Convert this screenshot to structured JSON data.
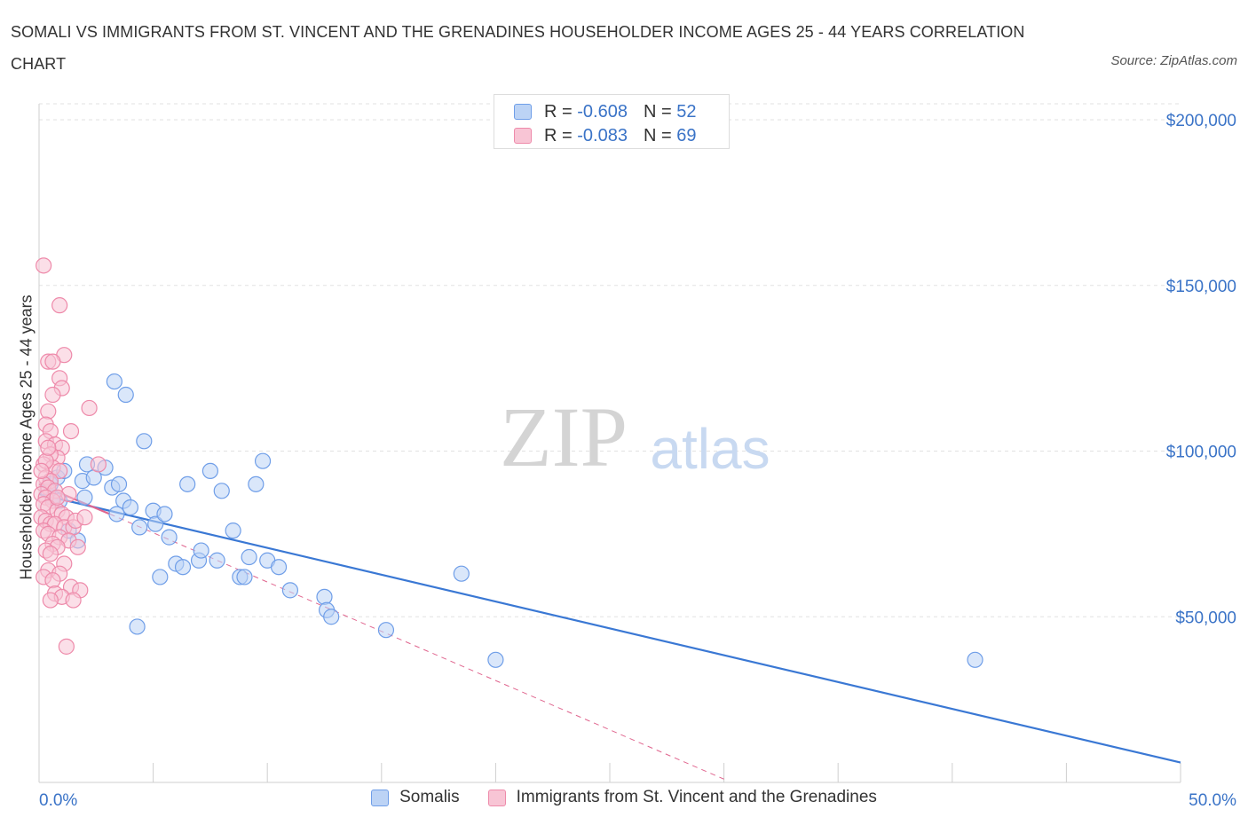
{
  "title": "SOMALI VS IMMIGRANTS FROM ST. VINCENT AND THE GRENADINES HOUSEHOLDER INCOME AGES 25 - 44 YEARS CORRELATION CHART",
  "source": "Source: ZipAtlas.com",
  "watermark": {
    "zip": "ZIP",
    "atlas": "atlas"
  },
  "legend_top": [
    {
      "r_label": "R =",
      "r_value": "-0.608",
      "n_label": "N =",
      "n_value": "52",
      "color": "#6f9ee8",
      "fill": "#bcd3f5"
    },
    {
      "r_label": "R =",
      "r_value": "-0.083",
      "n_label": "N =",
      "n_value": "69",
      "color": "#ee8aaa",
      "fill": "#f8c5d5"
    }
  ],
  "chart_data": {
    "type": "scatter",
    "xlabel": "",
    "ylabel": "Householder Income Ages 25 - 44 years",
    "xlim": [
      0,
      50
    ],
    "ylim": [
      0,
      200000
    ],
    "x_tick_labels": [
      "0.0%",
      "50.0%"
    ],
    "y_tick_labels": [
      "$50,000",
      "$100,000",
      "$150,000",
      "$200,000"
    ],
    "y_ticks": [
      50000,
      100000,
      150000,
      200000
    ],
    "grid": true,
    "legend_position": "top-center and bottom",
    "series": [
      {
        "name": "Somalis",
        "color": "#6f9ee8",
        "fill": "#bcd3f5",
        "points": [
          [
            0.5,
            90000
          ],
          [
            0.6,
            86000
          ],
          [
            0.4,
            88000
          ],
          [
            0.8,
            92000
          ],
          [
            1.1,
            94000
          ],
          [
            0.9,
            85000
          ],
          [
            1.3,
            76000
          ],
          [
            1.7,
            73000
          ],
          [
            1.9,
            91000
          ],
          [
            2.0,
            86000
          ],
          [
            2.1,
            96000
          ],
          [
            2.4,
            92000
          ],
          [
            2.9,
            95000
          ],
          [
            3.2,
            89000
          ],
          [
            3.5,
            90000
          ],
          [
            3.4,
            81000
          ],
          [
            3.7,
            85000
          ],
          [
            4.0,
            83000
          ],
          [
            4.4,
            77000
          ],
          [
            4.6,
            103000
          ],
          [
            5.0,
            82000
          ],
          [
            5.1,
            78000
          ],
          [
            5.5,
            81000
          ],
          [
            5.3,
            62000
          ],
          [
            5.7,
            74000
          ],
          [
            6.0,
            66000
          ],
          [
            6.3,
            65000
          ],
          [
            6.5,
            90000
          ],
          [
            7.0,
            67000
          ],
          [
            7.1,
            70000
          ],
          [
            7.5,
            94000
          ],
          [
            7.8,
            67000
          ],
          [
            8.0,
            88000
          ],
          [
            8.5,
            76000
          ],
          [
            8.8,
            62000
          ],
          [
            9.0,
            62000
          ],
          [
            9.2,
            68000
          ],
          [
            9.5,
            90000
          ],
          [
            9.8,
            97000
          ],
          [
            10.0,
            67000
          ],
          [
            10.5,
            65000
          ],
          [
            11.0,
            58000
          ],
          [
            12.5,
            56000
          ],
          [
            12.6,
            52000
          ],
          [
            12.8,
            50000
          ],
          [
            15.2,
            46000
          ],
          [
            18.5,
            63000
          ],
          [
            20.0,
            37000
          ],
          [
            3.3,
            121000
          ],
          [
            3.8,
            117000
          ],
          [
            4.3,
            47000
          ],
          [
            41.0,
            37000
          ]
        ]
      },
      {
        "name": "Immigrants from St. Vincent and the Grenadines",
        "color": "#ee8aaa",
        "fill": "#f8c5d5",
        "points": [
          [
            0.2,
            156000
          ],
          [
            0.9,
            144000
          ],
          [
            1.1,
            129000
          ],
          [
            0.4,
            127000
          ],
          [
            0.6,
            127000
          ],
          [
            0.9,
            122000
          ],
          [
            1.0,
            119000
          ],
          [
            0.6,
            117000
          ],
          [
            0.4,
            112000
          ],
          [
            2.2,
            113000
          ],
          [
            0.3,
            108000
          ],
          [
            0.5,
            106000
          ],
          [
            1.4,
            106000
          ],
          [
            0.3,
            103000
          ],
          [
            0.7,
            102000
          ],
          [
            1.0,
            101000
          ],
          [
            0.8,
            98000
          ],
          [
            0.5,
            99000
          ],
          [
            0.2,
            96000
          ],
          [
            0.6,
            95000
          ],
          [
            0.9,
            94000
          ],
          [
            2.6,
            96000
          ],
          [
            0.3,
            92000
          ],
          [
            0.5,
            91000
          ],
          [
            0.2,
            90000
          ],
          [
            0.4,
            89000
          ],
          [
            0.7,
            88000
          ],
          [
            1.3,
            87000
          ],
          [
            0.1,
            87000
          ],
          [
            0.3,
            86000
          ],
          [
            0.6,
            85000
          ],
          [
            0.2,
            84000
          ],
          [
            0.4,
            83000
          ],
          [
            0.8,
            82000
          ],
          [
            1.0,
            81000
          ],
          [
            1.2,
            80000
          ],
          [
            0.1,
            80000
          ],
          [
            0.3,
            79000
          ],
          [
            0.5,
            78000
          ],
          [
            0.7,
            78000
          ],
          [
            1.1,
            77000
          ],
          [
            1.5,
            77000
          ],
          [
            0.2,
            76000
          ],
          [
            0.4,
            75000
          ],
          [
            0.9,
            74000
          ],
          [
            1.3,
            73000
          ],
          [
            0.6,
            72000
          ],
          [
            0.8,
            71000
          ],
          [
            1.7,
            71000
          ],
          [
            0.3,
            70000
          ],
          [
            0.5,
            69000
          ],
          [
            1.1,
            66000
          ],
          [
            0.4,
            64000
          ],
          [
            0.9,
            63000
          ],
          [
            0.2,
            62000
          ],
          [
            0.6,
            61000
          ],
          [
            1.4,
            59000
          ],
          [
            1.8,
            58000
          ],
          [
            0.7,
            57000
          ],
          [
            1.0,
            56000
          ],
          [
            0.5,
            55000
          ],
          [
            1.5,
            55000
          ],
          [
            1.2,
            41000
          ],
          [
            0.3,
            97000
          ],
          [
            1.6,
            79000
          ],
          [
            0.8,
            86000
          ],
          [
            2.0,
            80000
          ],
          [
            0.1,
            94000
          ],
          [
            0.4,
            101000
          ]
        ]
      }
    ],
    "trend_lines": [
      {
        "series": "Somalis",
        "x": [
          0,
          50
        ],
        "y": [
          87000,
          6000
        ],
        "style": "solid"
      },
      {
        "series": "Immigrants from St. Vincent and the Grenadines",
        "x": [
          0,
          3.1
        ],
        "y": [
          90000,
          81000
        ],
        "style": "solid"
      },
      {
        "series": "Immigrants from St. Vincent and the Grenadines",
        "x": [
          3.1,
          30
        ],
        "y": [
          81000,
          1000
        ],
        "style": "dashed"
      }
    ]
  }
}
